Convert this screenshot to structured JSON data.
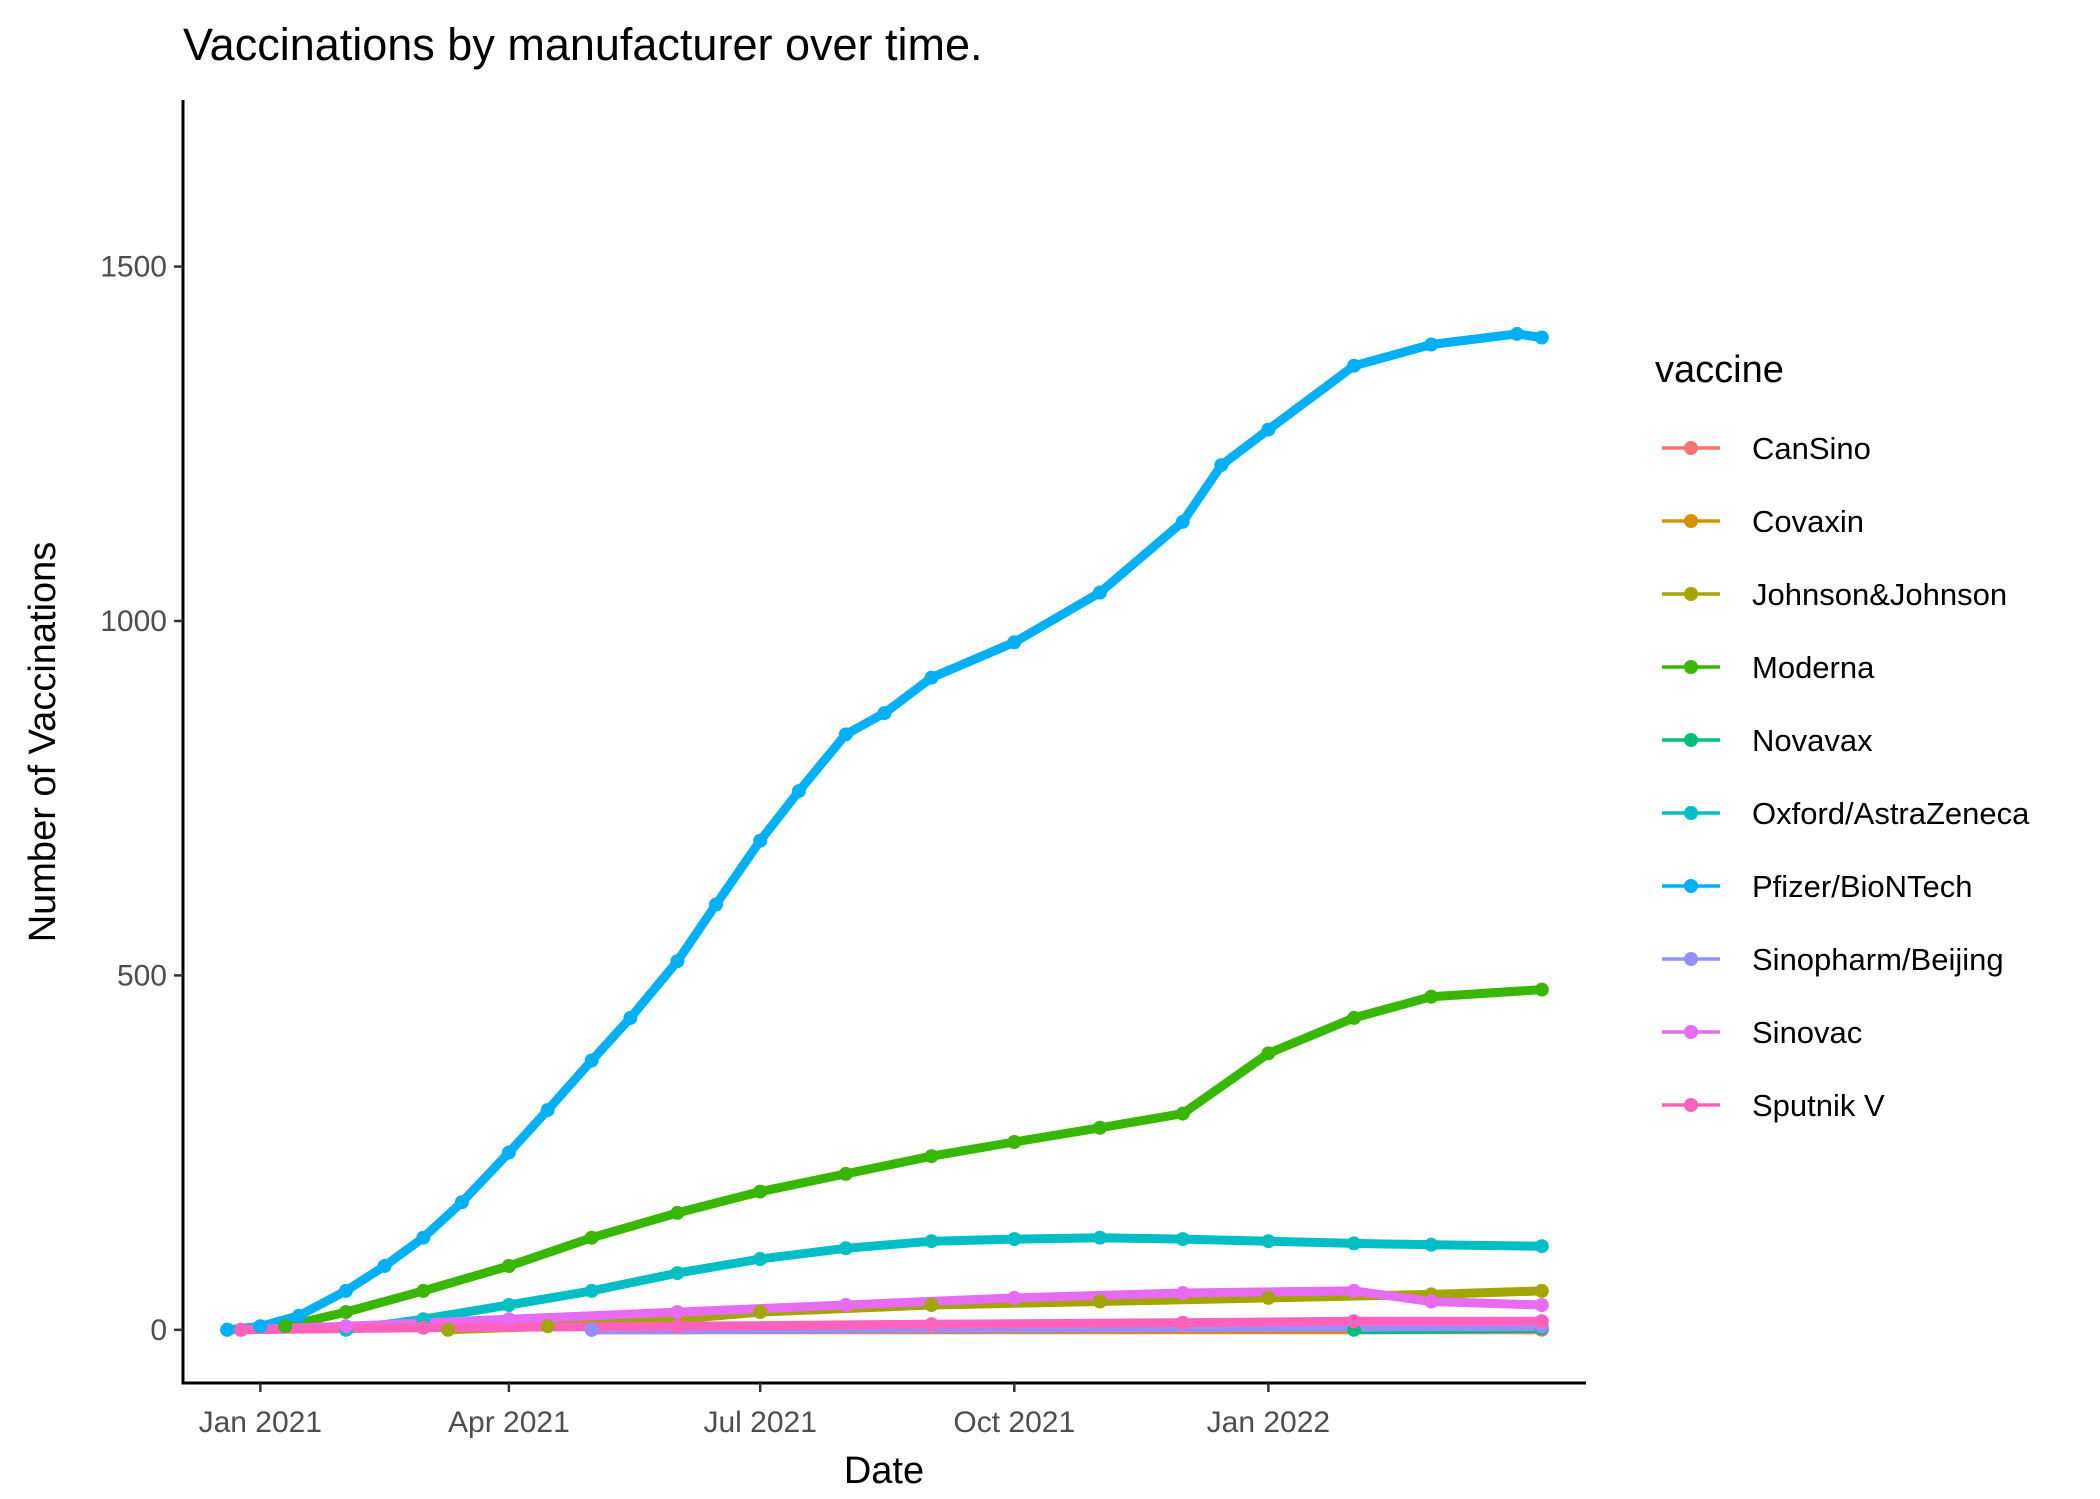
{
  "chart_data": {
    "type": "line",
    "title": "Vaccinations by manufacturer over time.",
    "xlabel": "Date",
    "ylabel": "Number of Vaccinations",
    "x_axis_type": "date",
    "xlim": [
      "2020-12-04",
      "2022-04-26"
    ],
    "ylim": [
      -75,
      1735
    ],
    "x_ticks": [
      {
        "date": "2021-01-01",
        "label": "Jan 2021"
      },
      {
        "date": "2021-04-01",
        "label": "Apr 2021"
      },
      {
        "date": "2021-07-01",
        "label": "Jul 2021"
      },
      {
        "date": "2021-10-01",
        "label": "Oct 2021"
      },
      {
        "date": "2022-01-01",
        "label": "Jan 2022"
      }
    ],
    "y_ticks": [
      0,
      500,
      1000,
      1500
    ],
    "grid": false,
    "legend_title": "vaccine",
    "legend_position": "right",
    "series": [
      {
        "name": "CanSino",
        "color": "#F8766D",
        "x": [
          "2021-05-01",
          "2022-04-10"
        ],
        "y": [
          0,
          0
        ]
      },
      {
        "name": "Covaxin",
        "color": "#D89000",
        "x": [
          "2021-05-01",
          "2022-04-10"
        ],
        "y": [
          0,
          2
        ]
      },
      {
        "name": "Johnson&Johnson",
        "color": "#A3A500",
        "x": [
          "2021-03-10",
          "2021-04-15",
          "2021-06-01",
          "2021-07-01",
          "2021-09-01",
          "2021-11-01",
          "2022-01-01",
          "2022-03-01",
          "2022-04-10"
        ],
        "y": [
          0,
          5,
          15,
          25,
          35,
          40,
          45,
          50,
          55
        ]
      },
      {
        "name": "Moderna",
        "color": "#39B600",
        "x": [
          "2020-12-20",
          "2021-01-10",
          "2021-02-01",
          "2021-03-01",
          "2021-04-01",
          "2021-05-01",
          "2021-06-01",
          "2021-07-01",
          "2021-08-01",
          "2021-09-01",
          "2021-10-01",
          "2021-11-01",
          "2021-12-01",
          "2022-01-01",
          "2022-02-01",
          "2022-03-01",
          "2022-04-10"
        ],
        "y": [
          0,
          5,
          25,
          55,
          90,
          130,
          165,
          195,
          220,
          245,
          265,
          285,
          305,
          390,
          440,
          470,
          480
        ]
      },
      {
        "name": "Novavax",
        "color": "#00BF7D",
        "x": [
          "2022-02-01",
          "2022-04-10"
        ],
        "y": [
          0,
          2
        ]
      },
      {
        "name": "Oxford/AstraZeneca",
        "color": "#00BFC4",
        "x": [
          "2021-02-01",
          "2021-03-01",
          "2021-04-01",
          "2021-05-01",
          "2021-06-01",
          "2021-07-01",
          "2021-08-01",
          "2021-09-01",
          "2021-10-01",
          "2021-11-01",
          "2021-12-01",
          "2022-01-01",
          "2022-02-01",
          "2022-03-01",
          "2022-04-10"
        ],
        "y": [
          0,
          15,
          35,
          55,
          80,
          100,
          115,
          125,
          128,
          130,
          128,
          125,
          122,
          120,
          118
        ]
      },
      {
        "name": "Pfizer/BioNTech",
        "color": "#00B0F6",
        "x": [
          "2020-12-20",
          "2021-01-01",
          "2021-01-15",
          "2021-02-01",
          "2021-02-15",
          "2021-03-01",
          "2021-03-15",
          "2021-04-01",
          "2021-04-15",
          "2021-05-01",
          "2021-05-15",
          "2021-06-01",
          "2021-06-15",
          "2021-07-01",
          "2021-07-15",
          "2021-08-01",
          "2021-08-15",
          "2021-09-01",
          "2021-10-01",
          "2021-11-01",
          "2021-12-01",
          "2021-12-15",
          "2022-01-01",
          "2022-02-01",
          "2022-03-01",
          "2022-04-01",
          "2022-04-10"
        ],
        "y": [
          0,
          5,
          20,
          55,
          90,
          130,
          180,
          250,
          310,
          380,
          440,
          520,
          600,
          690,
          760,
          840,
          870,
          920,
          970,
          1040,
          1140,
          1220,
          1270,
          1360,
          1390,
          1405,
          1400
        ]
      },
      {
        "name": "Sinopharm/Beijing",
        "color": "#9590FF",
        "x": [
          "2021-05-01",
          "2022-04-10"
        ],
        "y": [
          0,
          5
        ]
      },
      {
        "name": "Sinovac",
        "color": "#E76BF3",
        "x": [
          "2020-12-25",
          "2021-02-01",
          "2021-04-01",
          "2021-06-01",
          "2021-08-01",
          "2021-10-01",
          "2021-12-01",
          "2022-02-01",
          "2022-03-01",
          "2022-04-10"
        ],
        "y": [
          0,
          5,
          15,
          25,
          35,
          45,
          52,
          55,
          40,
          35
        ]
      },
      {
        "name": "Sputnik V",
        "color": "#FF62BC",
        "x": [
          "2020-12-25",
          "2021-03-01",
          "2021-06-01",
          "2021-09-01",
          "2021-12-01",
          "2022-02-01",
          "2022-04-10"
        ],
        "y": [
          0,
          3,
          5,
          8,
          10,
          12,
          12
        ]
      }
    ]
  }
}
